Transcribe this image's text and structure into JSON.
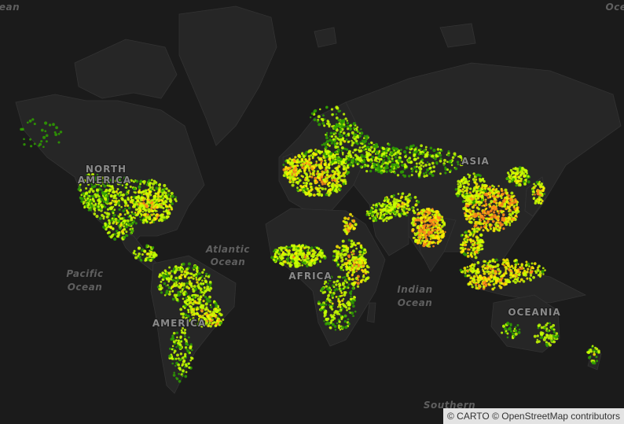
{
  "map": {
    "basemap": "dark",
    "colors": {
      "ocean": "#1b1b1b",
      "land": "#262626",
      "border": "#3a3a3a",
      "low": "#2fa000",
      "mid": "#c8ff00",
      "high": "#ffee00",
      "peak": "#ff8c1a"
    },
    "labels": {
      "north_america": "NORTH AMERICA",
      "asia": "ASIA",
      "africa": "AFRICA",
      "south_america": "AMERICA",
      "oceania": "OCEANIA",
      "atlantic": "Atlantic Ocean",
      "pacific": "Pacific Ocean",
      "indian": "Indian Ocean",
      "southern": "Southern Ocean",
      "arctic_left": "ean",
      "arctic_right": "Oce"
    },
    "attribution": "© CARTO © OpenStreetMap contributors"
  }
}
